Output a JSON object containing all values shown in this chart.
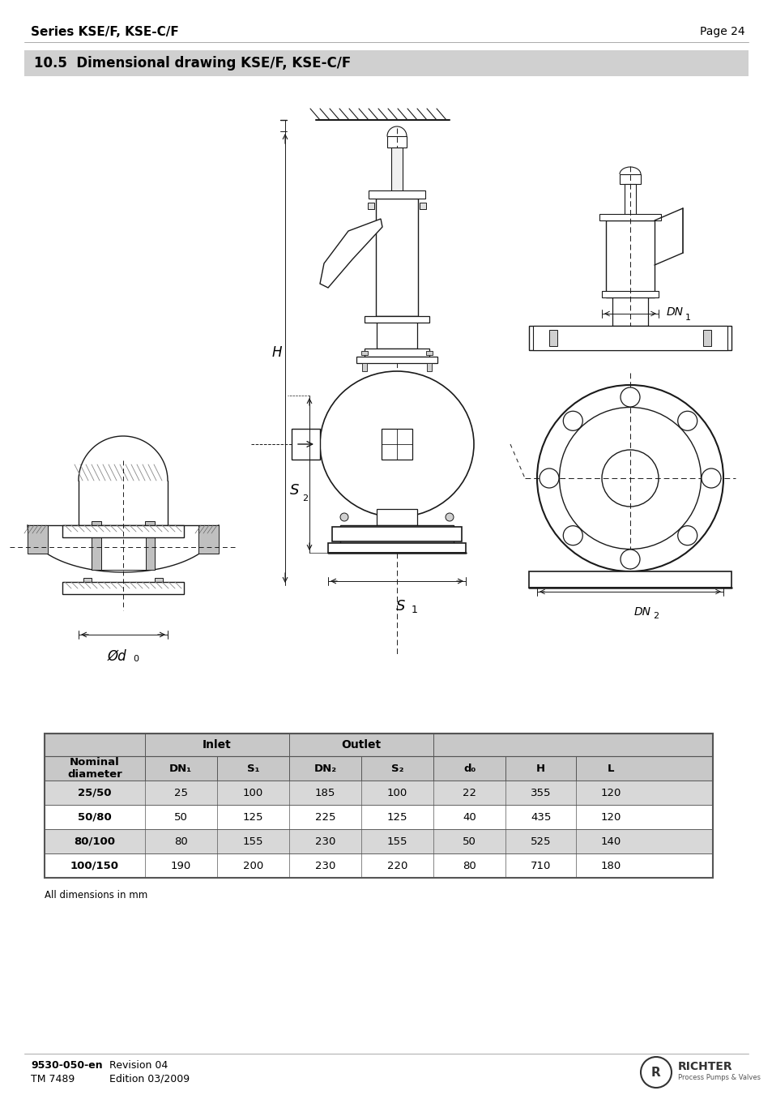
{
  "page_title_left": "Series KSE/F, KSE-C/F",
  "page_title_right": "Page 24",
  "section_title": "10.5  Dimensional drawing KSE/F, KSE-C/F",
  "section_bg": "#d0d0d0",
  "table_rows": [
    [
      "25/50",
      "25",
      "100",
      "185",
      "100",
      "22",
      "355",
      "120"
    ],
    [
      "50/80",
      "50",
      "125",
      "225",
      "125",
      "40",
      "435",
      "120"
    ],
    [
      "80/100",
      "80",
      "155",
      "230",
      "155",
      "50",
      "525",
      "140"
    ],
    [
      "100/150",
      "190",
      "200",
      "230",
      "220",
      "80",
      "710",
      "180"
    ]
  ],
  "footer_left1": "9530-050-en",
  "footer_left2": "TM 7489",
  "footer_right1": "Revision 04",
  "footer_right2": "Edition 03/2009",
  "note": "All dimensions in mm",
  "header_bg": "#c8c8c8",
  "row_bg_dark": "#d8d8d8",
  "row_bg_light": "#ffffff",
  "border_color": "#555555",
  "hatch_color": "#555555",
  "draw_color": "#1a1a1a"
}
